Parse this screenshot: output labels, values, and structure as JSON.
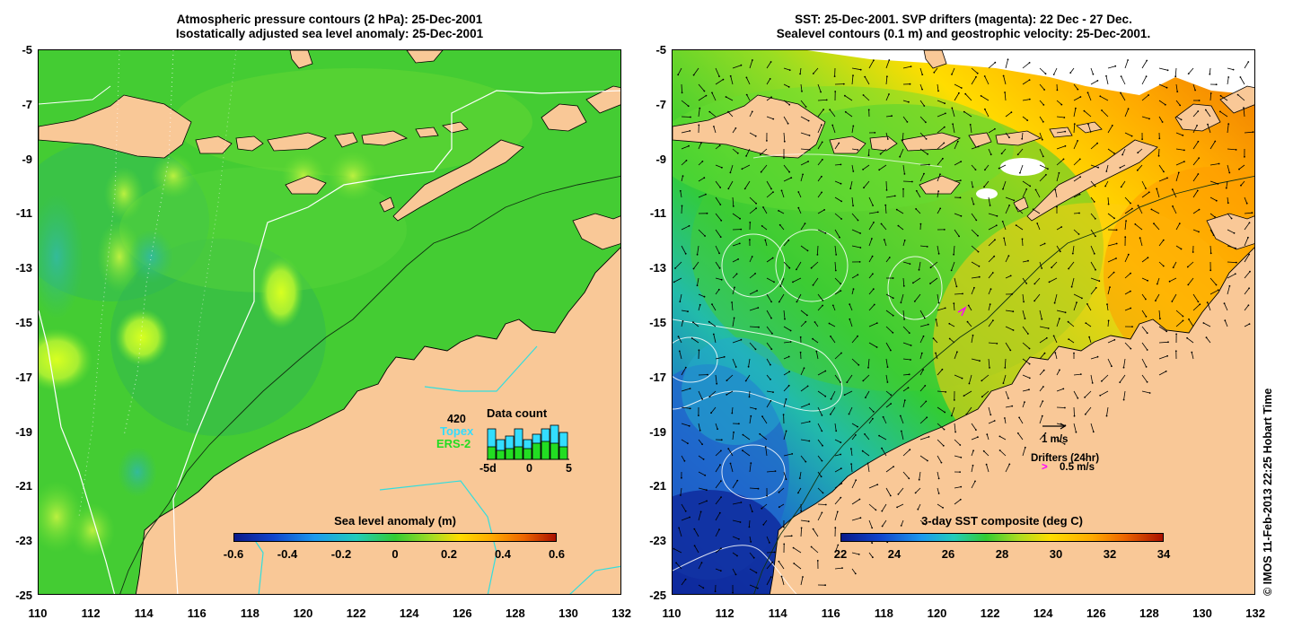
{
  "left_panel": {
    "title_line1": "Atmospheric pressure contours (2 hPa): 25-Dec-2001",
    "title_line2": "Isostatically adjusted sea level anomaly: 25-Dec-2001",
    "colorbar": {
      "title": "Sea level anomaly (m)",
      "ticks": [
        "-0.6",
        "-0.4",
        "-0.2",
        "0",
        "0.2",
        "0.4",
        "0.6"
      ]
    },
    "data_count": {
      "title": "Data count",
      "total": "420",
      "topex_label": "Topex",
      "ers2_label": "ERS-2",
      "axis_labels": [
        "-5d",
        "0",
        "5"
      ],
      "topex_color": "#33ddff",
      "ers2_color": "#22dd22"
    }
  },
  "right_panel": {
    "title_line1": "SST: 25-Dec-2001. SVP drifters (magenta): 22 Dec - 27 Dec.",
    "title_line2": "Sealevel contours (0.1 m) and geostrophic velocity: 25-Dec-2001.",
    "colorbar": {
      "title": "3-day SST composite (deg C)",
      "ticks": [
        "22",
        "24",
        "26",
        "28",
        "30",
        "32",
        "34"
      ]
    },
    "velocity_scale_label": "1 m/s",
    "drifters_label": "Drifters (24hr)",
    "drifter_scale_label": "0.5 m/s",
    "drifter_glyph": ">",
    "drifter_color": "#ff00ff"
  },
  "axes": {
    "y_ticks": [
      "-5",
      "-7",
      "-9",
      "-11",
      "-13",
      "-15",
      "-17",
      "-19",
      "-21",
      "-23",
      "-25"
    ],
    "x_ticks": [
      "110",
      "112",
      "114",
      "116",
      "118",
      "120",
      "122",
      "124",
      "126",
      "128",
      "130",
      "132"
    ]
  },
  "credit": "© IMOS 11-Feb-2013 22:25 Hobart Time",
  "colors": {
    "land": "#f9c897",
    "sla_background": "#33cc33",
    "coastline": "#000000",
    "bathymetry_cyan": "#33dddd"
  }
}
